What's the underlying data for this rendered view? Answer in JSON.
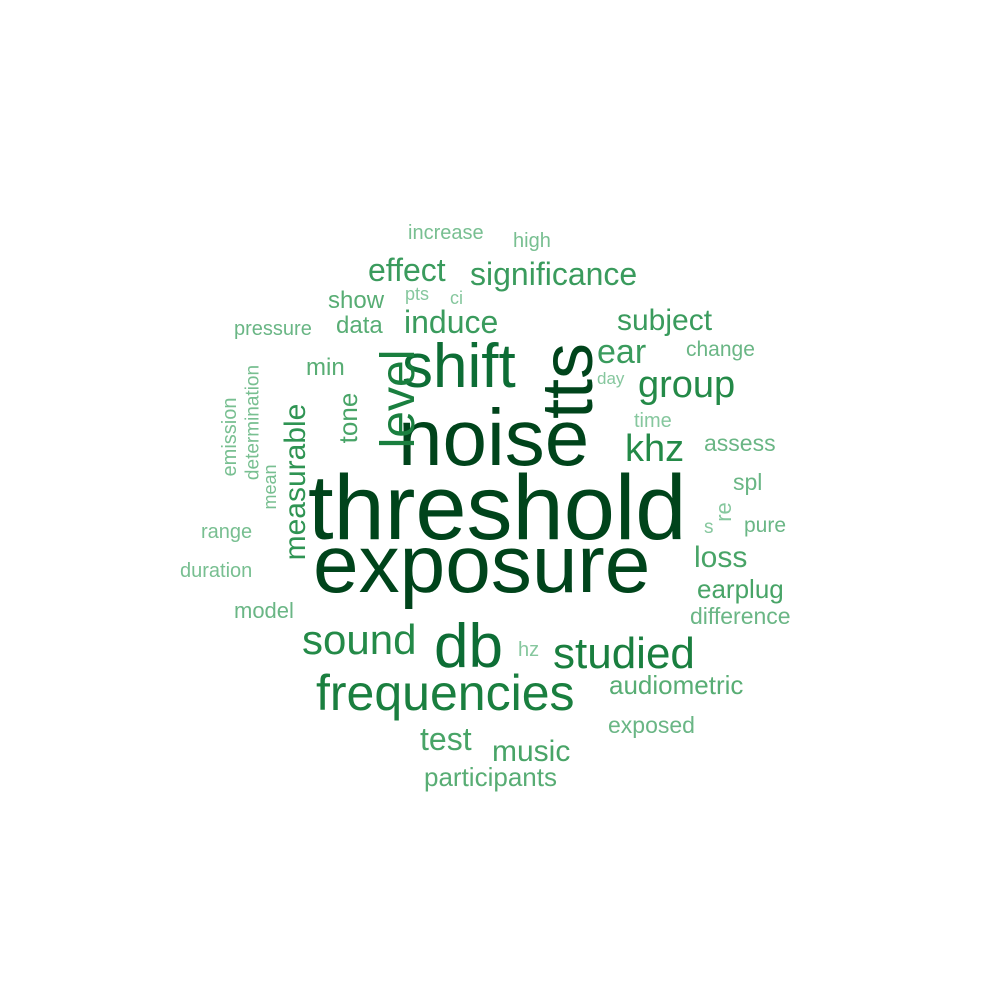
{
  "words": [
    {
      "text": "threshold",
      "color": "#00441b"
    },
    {
      "text": "exposure",
      "color": "#00441b"
    },
    {
      "text": "noise",
      "color": "#00441b"
    },
    {
      "text": "tts",
      "color": "#00441b"
    },
    {
      "text": "shift",
      "color": "#0d6d35"
    },
    {
      "text": "db",
      "color": "#0d6d35"
    },
    {
      "text": "frequencies",
      "color": "#1a7f3f"
    },
    {
      "text": "level",
      "color": "#1a7f3f"
    },
    {
      "text": "studied",
      "color": "#1a7f3f"
    },
    {
      "text": "sound",
      "color": "#248a48"
    },
    {
      "text": "group",
      "color": "#248a48"
    },
    {
      "text": "khz",
      "color": "#248a48"
    },
    {
      "text": "measurable",
      "color": "#2f9453"
    },
    {
      "text": "significance",
      "color": "#3a9b5d"
    },
    {
      "text": "induce",
      "color": "#3a9b5d"
    },
    {
      "text": "ear",
      "color": "#3a9b5d"
    },
    {
      "text": "subject",
      "color": "#3a9b5d"
    },
    {
      "text": "effect",
      "color": "#3a9b5d"
    },
    {
      "text": "test",
      "color": "#48a467"
    },
    {
      "text": "music",
      "color": "#48a467"
    },
    {
      "text": "loss",
      "color": "#48a467"
    },
    {
      "text": "tone",
      "color": "#48a467"
    },
    {
      "text": "earplug",
      "color": "#48a467"
    },
    {
      "text": "participants",
      "color": "#58ad74"
    },
    {
      "text": "audiometric",
      "color": "#58ad74"
    },
    {
      "text": "show",
      "color": "#58ad74"
    },
    {
      "text": "data",
      "color": "#58ad74"
    },
    {
      "text": "min",
      "color": "#58ad74"
    },
    {
      "text": "assess",
      "color": "#6ab685"
    },
    {
      "text": "exposed",
      "color": "#6ab685"
    },
    {
      "text": "difference",
      "color": "#6ab685"
    },
    {
      "text": "pressure",
      "color": "#6ab685"
    },
    {
      "text": "change",
      "color": "#6ab685"
    },
    {
      "text": "spl",
      "color": "#6ab685"
    },
    {
      "text": "pure",
      "color": "#6ab685"
    },
    {
      "text": "model",
      "color": "#6ab685"
    },
    {
      "text": "duration",
      "color": "#78bf91"
    },
    {
      "text": "range",
      "color": "#78bf91"
    },
    {
      "text": "increase",
      "color": "#78bf91"
    },
    {
      "text": "high",
      "color": "#78bf91"
    },
    {
      "text": "emission",
      "color": "#78bf91"
    },
    {
      "text": "determination",
      "color": "#78bf91"
    },
    {
      "text": "mean",
      "color": "#78bf91"
    },
    {
      "text": "time",
      "color": "#86c79e"
    },
    {
      "text": "day",
      "color": "#86c79e"
    },
    {
      "text": "pts",
      "color": "#86c79e"
    },
    {
      "text": "ci",
      "color": "#86c79e"
    },
    {
      "text": "hz",
      "color": "#86c79e"
    },
    {
      "text": "re",
      "color": "#86c79e"
    },
    {
      "text": "s",
      "color": "#86c79e"
    }
  ]
}
